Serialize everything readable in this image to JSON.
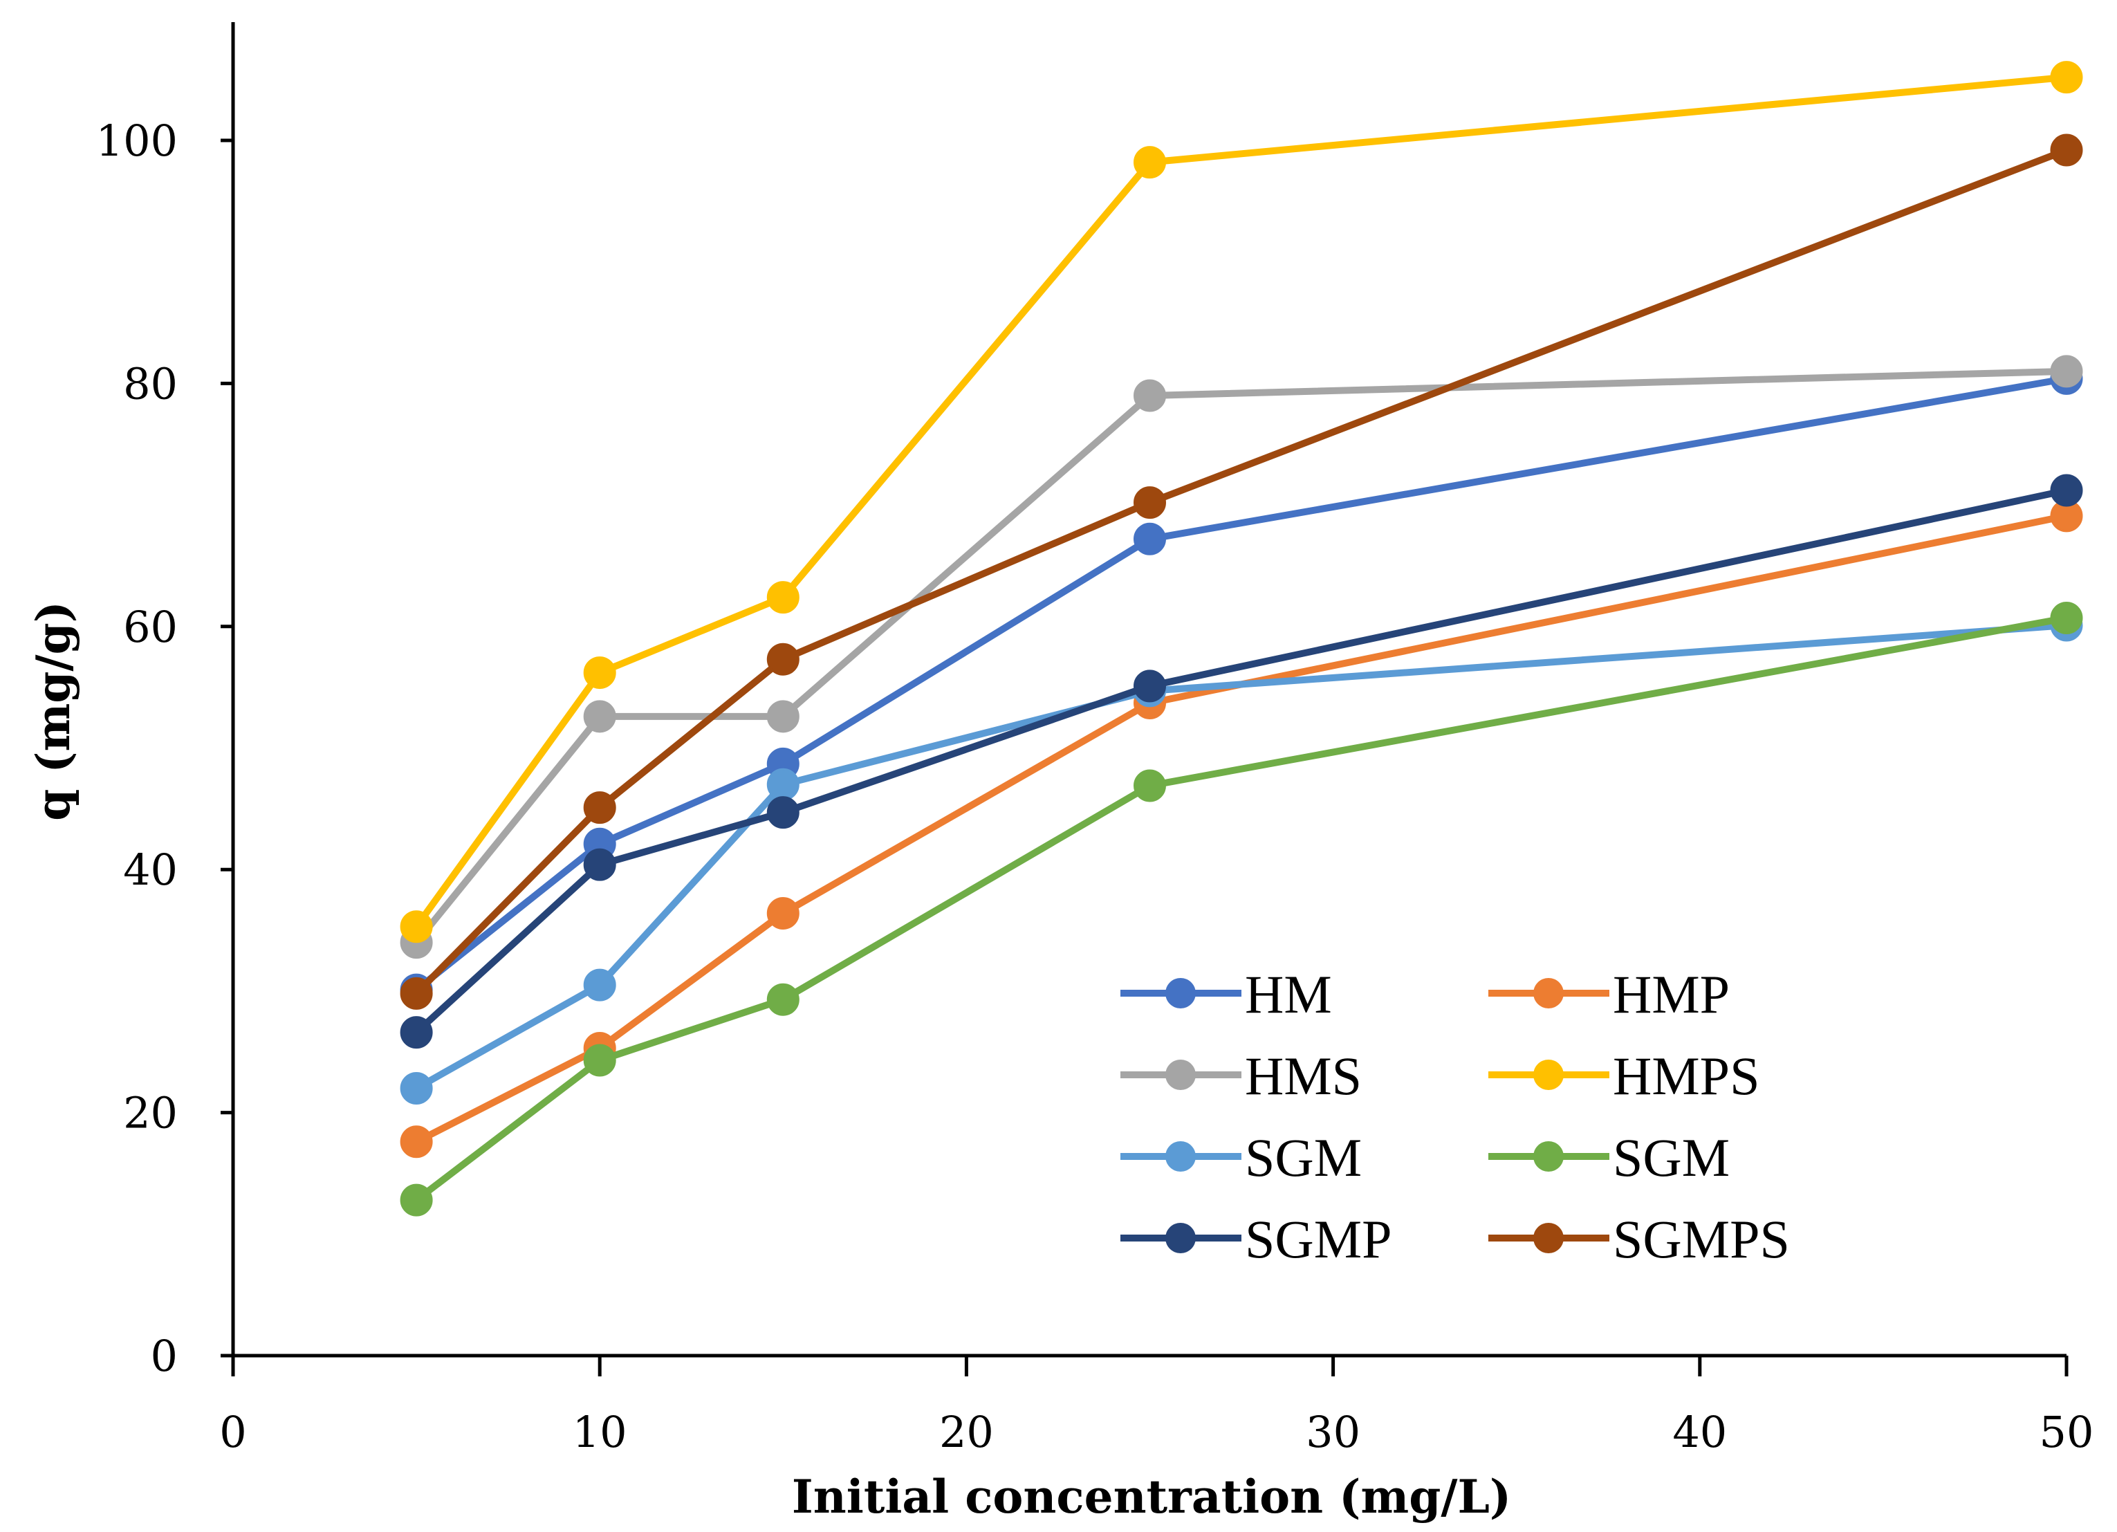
{
  "chart_data": {
    "type": "line",
    "title": "",
    "xlabel": "Initial concentration (mg/L)",
    "ylabel": "q (mg/g)",
    "xlim": [
      0,
      50
    ],
    "ylim": [
      0,
      110
    ],
    "xticks": [
      0,
      10,
      20,
      30,
      40,
      50
    ],
    "yticks": [
      0,
      20,
      40,
      60,
      80,
      100
    ],
    "grid": false,
    "legend_position": "bottom-right",
    "x": [
      5,
      10,
      15,
      25,
      50
    ],
    "series": [
      {
        "name": "HM",
        "color": "#4472C4",
        "values": [
          30.1,
          42.1,
          48.7,
          67.2,
          80.4
        ]
      },
      {
        "name": "HMP",
        "color": "#ED7D31",
        "values": [
          17.6,
          25.3,
          36.4,
          53.7,
          69.1
        ]
      },
      {
        "name": "HMS",
        "color": "#A5A5A5",
        "values": [
          34.0,
          52.6,
          52.6,
          79.0,
          81.0
        ]
      },
      {
        "name": "HMPS",
        "color": "#FFC000",
        "values": [
          35.3,
          56.2,
          62.4,
          98.2,
          105.2
        ]
      },
      {
        "name": "SGM",
        "color": "#5B9BD5",
        "values": [
          22.0,
          30.5,
          47.0,
          54.7,
          60.1
        ]
      },
      {
        "name": "SGM",
        "color": "#70AD47",
        "values": [
          12.8,
          24.3,
          29.3,
          46.9,
          60.7
        ]
      },
      {
        "name": "SGMP",
        "color": "#264478",
        "values": [
          26.6,
          40.4,
          44.7,
          55.1,
          71.2
        ]
      },
      {
        "name": "SGMPS",
        "color": "#9E480E",
        "values": [
          29.8,
          45.1,
          57.3,
          70.2,
          99.2
        ]
      }
    ]
  }
}
